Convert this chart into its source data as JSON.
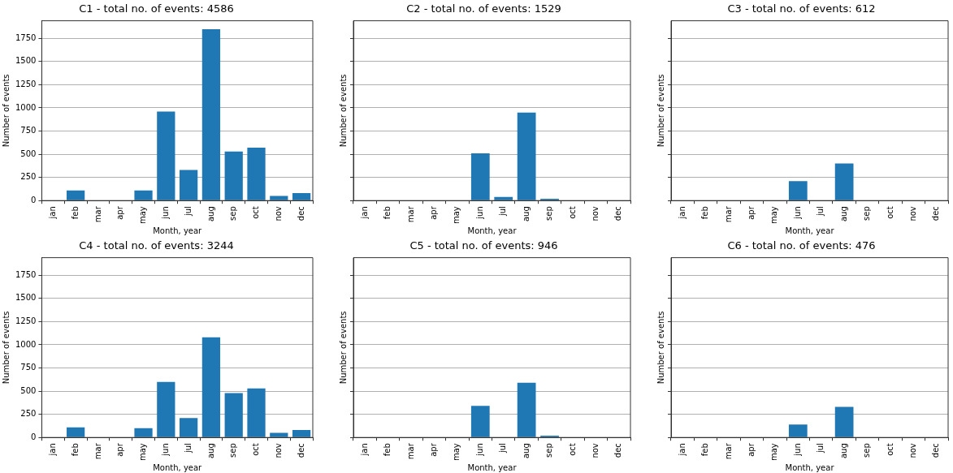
{
  "chart_data": [
    {
      "type": "bar",
      "title": "C1 - total no. of events: 4586",
      "xlabel": "Month, year",
      "ylabel": "Number of events",
      "categories": [
        "jan",
        "feb",
        "mar",
        "apr",
        "may",
        "jun",
        "jul",
        "aug",
        "sep",
        "oct",
        "nov",
        "dec"
      ],
      "values": [
        0,
        110,
        0,
        0,
        110,
        960,
        330,
        1850,
        530,
        570,
        50,
        80
      ],
      "color": "#1f77b4",
      "ylim": [
        0,
        1940
      ],
      "yticks": [
        0,
        250,
        500,
        750,
        1000,
        1250,
        1500,
        1750
      ],
      "grid": "y"
    },
    {
      "type": "bar",
      "title": "C2 - total no. of events: 1529",
      "xlabel": "Month, year",
      "ylabel": "Number of events",
      "categories": [
        "jan",
        "feb",
        "mar",
        "apr",
        "may",
        "jun",
        "jul",
        "aug",
        "sep",
        "oct",
        "nov",
        "dec"
      ],
      "values": [
        0,
        0,
        0,
        0,
        0,
        510,
        40,
        950,
        20,
        0,
        0,
        0
      ],
      "color": "#1f77b4",
      "ylim": [
        0,
        1940
      ],
      "yticks": [
        0,
        250,
        500,
        750,
        1000,
        1250,
        1500,
        1750
      ],
      "grid": "y",
      "tick_labels": "x"
    },
    {
      "type": "bar",
      "title": "C3 - total no. of events: 612",
      "xlabel": "Month, year",
      "ylabel": "Number of events",
      "categories": [
        "jan",
        "feb",
        "mar",
        "apr",
        "may",
        "jun",
        "jul",
        "aug",
        "sep",
        "oct",
        "nov",
        "dec"
      ],
      "values": [
        0,
        0,
        0,
        0,
        0,
        210,
        0,
        400,
        0,
        0,
        0,
        0
      ],
      "color": "#1f77b4",
      "ylim": [
        0,
        1940
      ],
      "yticks": [
        0,
        250,
        500,
        750,
        1000,
        1250,
        1500,
        1750
      ],
      "grid": "y",
      "tick_labels": "x"
    },
    {
      "type": "bar",
      "title": "C4 - total no. of events: 3244",
      "xlabel": "Month, year",
      "ylabel": "Number of events",
      "categories": [
        "jan",
        "feb",
        "mar",
        "apr",
        "may",
        "jun",
        "jul",
        "aug",
        "sep",
        "oct",
        "nov",
        "dec"
      ],
      "values": [
        0,
        110,
        0,
        0,
        100,
        600,
        210,
        1080,
        480,
        530,
        50,
        80
      ],
      "color": "#1f77b4",
      "ylim": [
        0,
        1940
      ],
      "yticks": [
        0,
        250,
        500,
        750,
        1000,
        1250,
        1500,
        1750
      ],
      "grid": "y"
    },
    {
      "type": "bar",
      "title": "C5 - total no. of events: 946",
      "xlabel": "Month, year",
      "ylabel": "Number of events",
      "categories": [
        "jan",
        "feb",
        "mar",
        "apr",
        "may",
        "jun",
        "jul",
        "aug",
        "sep",
        "oct",
        "nov",
        "dec"
      ],
      "values": [
        0,
        0,
        0,
        0,
        0,
        340,
        0,
        590,
        20,
        0,
        0,
        0
      ],
      "color": "#1f77b4",
      "ylim": [
        0,
        1940
      ],
      "yticks": [
        0,
        250,
        500,
        750,
        1000,
        1250,
        1500,
        1750
      ],
      "grid": "y",
      "tick_labels": "x"
    },
    {
      "type": "bar",
      "title": "C6 - total no. of events: 476",
      "xlabel": "Month, year",
      "ylabel": "Number of events",
      "categories": [
        "jan",
        "feb",
        "mar",
        "apr",
        "may",
        "jun",
        "jul",
        "aug",
        "sep",
        "oct",
        "nov",
        "dec"
      ],
      "values": [
        0,
        0,
        0,
        0,
        0,
        140,
        0,
        330,
        0,
        0,
        0,
        0
      ],
      "color": "#1f77b4",
      "ylim": [
        0,
        1940
      ],
      "yticks": [
        0,
        250,
        500,
        750,
        1000,
        1250,
        1500,
        1750
      ],
      "grid": "y",
      "tick_labels": "x"
    }
  ]
}
